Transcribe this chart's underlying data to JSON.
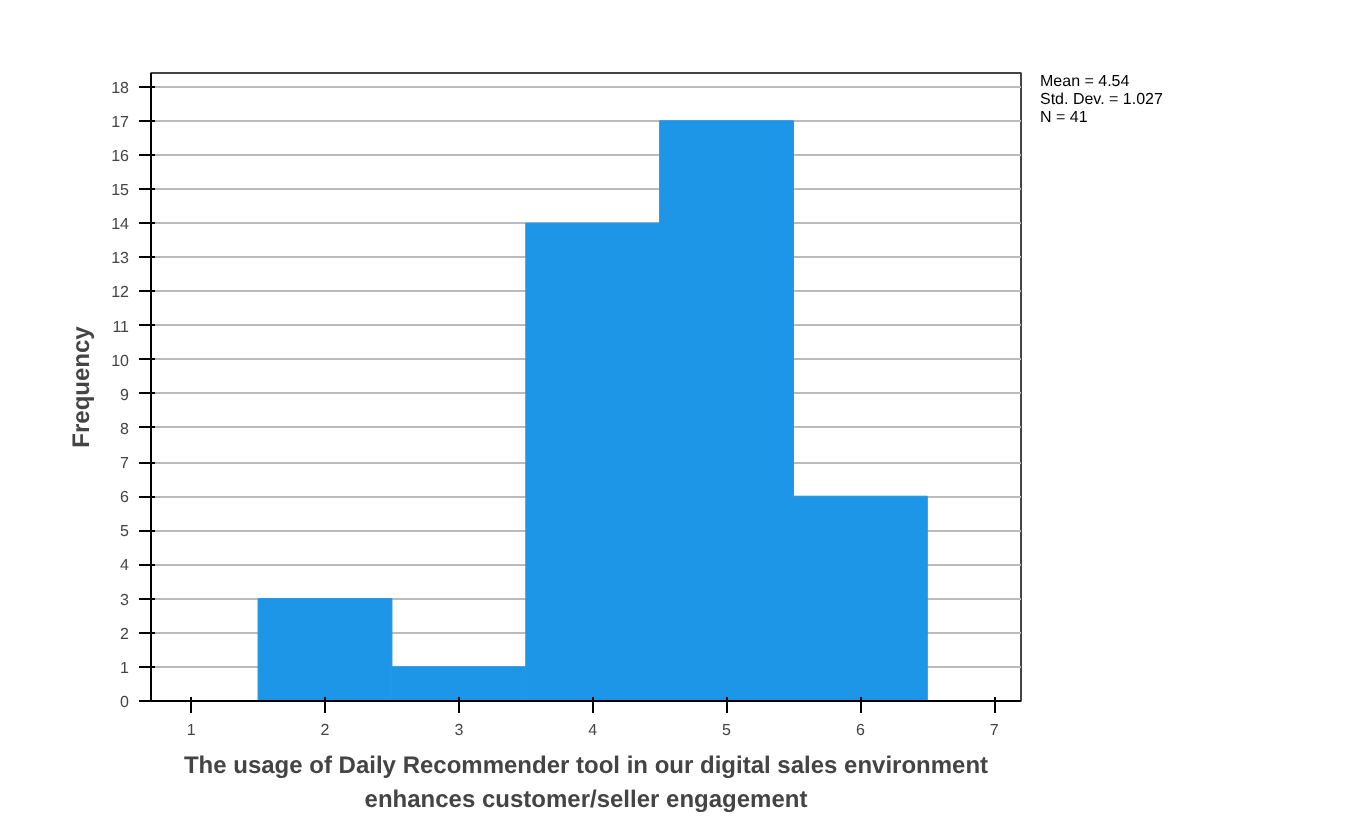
{
  "chart_data": {
    "type": "histogram",
    "xlabel": "The usage of Daily Recommender tool in our digital sales environment\nenhances customer/seller engagement",
    "ylabel": "Frequency",
    "bins": [
      0.5,
      1.5,
      2.5,
      3.5,
      4.5,
      5.5,
      6.5,
      7.5
    ],
    "values": [
      0,
      3,
      1,
      14,
      17,
      6,
      0
    ],
    "color": "#1e96e8",
    "xlim": [
      0.7,
      7.2
    ],
    "xticks": [
      1,
      2,
      3,
      4,
      5,
      6,
      7
    ],
    "ylim": [
      0,
      18.4
    ],
    "yticks": [
      0,
      1,
      2,
      3,
      4,
      5,
      6,
      7,
      8,
      9,
      10,
      11,
      12,
      13,
      14,
      15,
      16,
      17,
      18
    ],
    "grid": "y",
    "annotations": [
      "Mean = 4.54",
      "Std. Dev. = 1.027",
      "N = 41"
    ]
  }
}
